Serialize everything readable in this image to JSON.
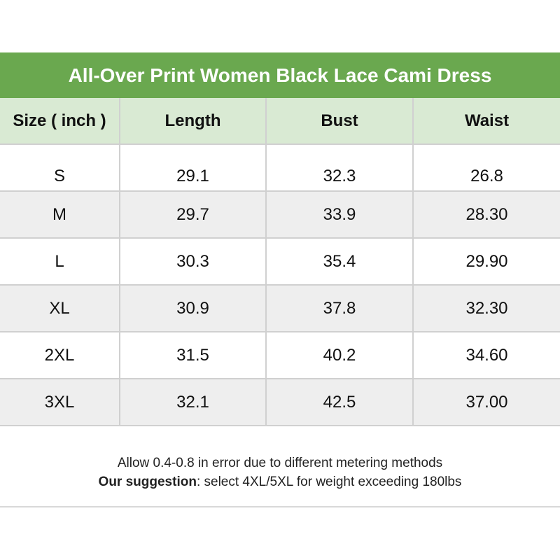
{
  "title": "All-Over Print Women Black Lace Cami Dress",
  "headers": [
    "Size ( inch )",
    "Length",
    "Bust",
    "Waist"
  ],
  "rows": [
    [
      "S",
      "29.1",
      "32.3",
      "26.8"
    ],
    [
      "M",
      "29.7",
      "33.9",
      "28.30"
    ],
    [
      "L",
      "30.3",
      "35.4",
      "29.90"
    ],
    [
      "XL",
      "30.9",
      "37.8",
      "32.30"
    ],
    [
      "2XL",
      "31.5",
      "40.2",
      "34.60"
    ],
    [
      "3XL",
      "32.1",
      "42.5",
      "37.00"
    ]
  ],
  "note": {
    "line1": "Allow 0.4-0.8 in error due to different metering methods",
    "suggestion_label": "Our suggestion",
    "suggestion_text": ": select 4XL/5XL for weight exceeding 180lbs"
  },
  "colors": {
    "title_bg": "#6aa84f",
    "header_bg": "#d9ead3",
    "stripe_bg": "#eeeeee"
  }
}
